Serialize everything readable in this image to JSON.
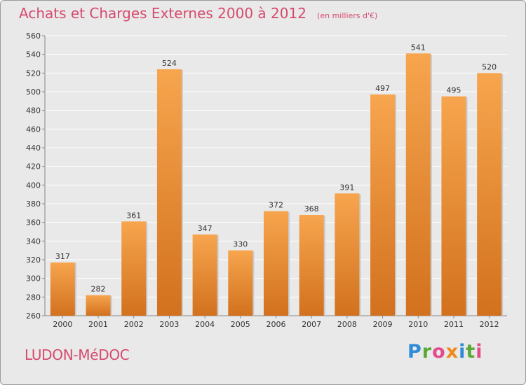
{
  "header": {
    "title": "Achats et Charges Externes 2000 à 2012",
    "unit": "(en milliers d'€)"
  },
  "footer": {
    "location": "LUDON-MéDOC",
    "brand": "Proxiti"
  },
  "colors": {
    "background": "#e9e9e9",
    "title": "#d64a6e",
    "bar_light": "#f7a54e",
    "bar_dark": "#d2711e",
    "grid": "#ffffff"
  },
  "chart_data": {
    "type": "bar",
    "title": "Achats et Charges Externes 2000 à 2012",
    "subtitle": "(en milliers d'€)",
    "xlabel": "",
    "ylabel": "",
    "categories": [
      "2000",
      "2001",
      "2002",
      "2003",
      "2004",
      "2005",
      "2006",
      "2007",
      "2008",
      "2009",
      "2010",
      "2011",
      "2012"
    ],
    "values": [
      317,
      282,
      361,
      524,
      347,
      330,
      372,
      368,
      391,
      497,
      541,
      495,
      520
    ],
    "ylim": [
      260,
      560
    ],
    "yticks": [
      260,
      280,
      300,
      320,
      340,
      360,
      380,
      400,
      420,
      440,
      460,
      480,
      500,
      520,
      540,
      560
    ],
    "grid": true,
    "data_labels": true
  }
}
